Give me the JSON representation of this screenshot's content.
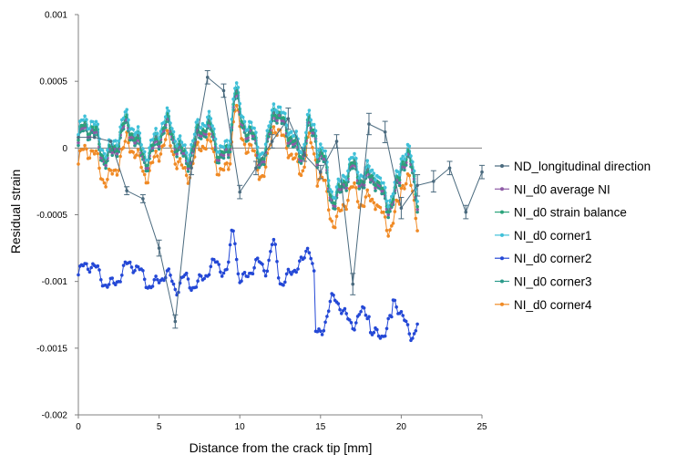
{
  "chart_data": {
    "type": "line",
    "xlabel": "Distance from the crack tip [mm]",
    "ylabel": "Residual strain",
    "xlim": [
      0,
      25
    ],
    "ylim": [
      -0.002,
      0.001
    ],
    "x_ticks": [
      0,
      5,
      10,
      15,
      20,
      25
    ],
    "x_tick_labels": [
      "0",
      "5",
      "10",
      "15",
      "20",
      "25"
    ],
    "y_ticks": [
      0.001,
      0.0005,
      0,
      -0.0005,
      -0.001,
      -0.0015,
      -0.002
    ],
    "y_tick_labels": [
      "0.001",
      "0.0005",
      "0",
      "-0.0005",
      "-0.001",
      "-0.0015",
      "-0.002"
    ],
    "grid": false,
    "legend_position": "right",
    "colors": {
      "nd": "#4a6a7e",
      "avg": "#8e5aa6",
      "balance": "#2aa37a",
      "corner1": "#3fc0d8",
      "corner2": "#2448d6",
      "corner3": "#2a9a8a",
      "corner4": "#f08a25"
    },
    "series": [
      {
        "name": "ND_longitudinal direction",
        "x": [
          0,
          1,
          2,
          3,
          4,
          5,
          6,
          7,
          8,
          9,
          10,
          11,
          12,
          13,
          14,
          15,
          16,
          17,
          18,
          19,
          20,
          21,
          22,
          23,
          24,
          25
        ],
        "values": [
          8e-05,
          8e-05,
          5e-05,
          -0.00032,
          -0.00038,
          -0.00075,
          -0.0013,
          -0.00015,
          0.00053,
          0.00043,
          -0.00033,
          -0.00015,
          5e-05,
          0.00022,
          -5e-05,
          -0.00018,
          5e-05,
          -0.00102,
          0.00018,
          0.00012,
          -0.00045,
          -0.00028,
          -0.00025,
          -0.00015,
          -0.00048,
          -0.00018
        ],
        "err": [
          0,
          0,
          0,
          3e-05,
          3e-05,
          6e-05,
          5e-05,
          5e-05,
          5e-05,
          5e-05,
          5e-05,
          5e-05,
          5e-05,
          8e-05,
          5e-05,
          5e-05,
          5e-05,
          8e-05,
          8e-05,
          8e-05,
          8e-05,
          8e-05,
          8e-05,
          5e-05,
          5e-05,
          5e-05
        ]
      },
      {
        "name": "NI_d0 average NI",
        "x_range": [
          0,
          21
        ]
      },
      {
        "name": "NI_d0 strain balance",
        "x_range": [
          0,
          21
        ]
      },
      {
        "name": "NI_d0 corner1",
        "x_range": [
          0,
          21
        ]
      },
      {
        "name": "NI_d0 corner2",
        "x_range": [
          0,
          21
        ]
      },
      {
        "name": "NI_d0 corner3",
        "x_range": [
          0,
          21
        ]
      },
      {
        "name": "NI_d0 corner4",
        "x_range": [
          0,
          21
        ]
      }
    ]
  }
}
